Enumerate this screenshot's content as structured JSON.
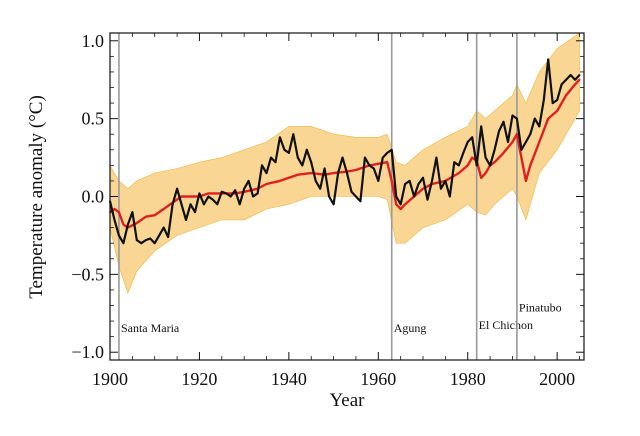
{
  "chart_data": {
    "type": "line",
    "xlabel": "Year",
    "ylabel": "Temperature anomaly (°C)",
    "xlim": [
      1900,
      2006
    ],
    "ylim": [
      -1.05,
      1.05
    ],
    "x_ticks": [
      {
        "value": 1900,
        "label": "1900"
      },
      {
        "value": 1920,
        "label": "1920"
      },
      {
        "value": 1940,
        "label": "1940"
      },
      {
        "value": 1960,
        "label": "1960"
      },
      {
        "value": 1980,
        "label": "1980"
      },
      {
        "value": 2000,
        "label": "2000"
      }
    ],
    "y_ticks": [
      {
        "value": 1.0,
        "label": "1.0"
      },
      {
        "value": 0.5,
        "label": "0.5"
      },
      {
        "value": 0.0,
        "label": "0.0"
      },
      {
        "value": -0.5,
        "label": "−0.5"
      },
      {
        "value": -1.0,
        "label": "−1.0"
      }
    ],
    "grid": false,
    "volcanic_eruptions": [
      {
        "name": "Santa Maria",
        "year": 1902,
        "label_y": -0.87
      },
      {
        "name": "Agung",
        "year": 1963,
        "label_y": -0.87
      },
      {
        "name": "El Chichon",
        "year": 1982,
        "label_y": -0.85
      },
      {
        "name": "Pinatubo",
        "year": 1991,
        "label_y": -0.74
      }
    ],
    "ensemble_band": {
      "color": "#f4b43c",
      "years": [
        1900,
        1902,
        1904,
        1906,
        1910,
        1915,
        1920,
        1925,
        1930,
        1935,
        1940,
        1945,
        1950,
        1955,
        1960,
        1962,
        1964,
        1966,
        1970,
        1975,
        1980,
        1982,
        1984,
        1986,
        1990,
        1991,
        1993,
        1996,
        2000,
        2005
      ],
      "lower": [
        -0.2,
        -0.45,
        -0.62,
        -0.48,
        -0.35,
        -0.25,
        -0.2,
        -0.15,
        -0.15,
        -0.08,
        -0.05,
        0.0,
        0.0,
        0.0,
        0.0,
        -0.02,
        -0.3,
        -0.3,
        -0.2,
        -0.15,
        -0.05,
        -0.1,
        -0.12,
        -0.05,
        0.05,
        0.0,
        -0.15,
        0.15,
        0.3,
        0.55
      ],
      "upper": [
        0.2,
        0.1,
        0.05,
        0.1,
        0.15,
        0.18,
        0.22,
        0.25,
        0.3,
        0.35,
        0.45,
        0.45,
        0.4,
        0.38,
        0.38,
        0.4,
        0.22,
        0.2,
        0.3,
        0.38,
        0.45,
        0.55,
        0.5,
        0.55,
        0.65,
        0.72,
        0.6,
        0.8,
        0.95,
        1.05
      ]
    },
    "series": [
      {
        "color": "#e02020",
        "x": [
          1900,
          1901,
          1902,
          1903,
          1904,
          1906,
          1908,
          1910,
          1912,
          1914,
          1916,
          1918,
          1920,
          1922,
          1925,
          1928,
          1930,
          1933,
          1935,
          1938,
          1940,
          1942,
          1945,
          1948,
          1950,
          1953,
          1955,
          1958,
          1960,
          1962,
          1963,
          1964,
          1965,
          1966,
          1968,
          1970,
          1972,
          1975,
          1978,
          1980,
          1981,
          1982,
          1983,
          1984,
          1985,
          1986,
          1988,
          1990,
          1991,
          1992,
          1993,
          1994,
          1996,
          1998,
          2000,
          2002,
          2004,
          2005
        ],
        "y": [
          -0.1,
          -0.08,
          -0.1,
          -0.18,
          -0.2,
          -0.17,
          -0.13,
          -0.12,
          -0.08,
          -0.04,
          0.0,
          0.0,
          0.0,
          0.02,
          0.02,
          0.02,
          0.03,
          0.05,
          0.08,
          0.1,
          0.12,
          0.14,
          0.15,
          0.14,
          0.15,
          0.16,
          0.17,
          0.2,
          0.21,
          0.22,
          0.1,
          -0.05,
          -0.08,
          -0.05,
          0.0,
          0.05,
          0.08,
          0.1,
          0.15,
          0.2,
          0.25,
          0.23,
          0.12,
          0.15,
          0.2,
          0.22,
          0.28,
          0.35,
          0.4,
          0.25,
          0.1,
          0.2,
          0.35,
          0.5,
          0.55,
          0.65,
          0.72,
          0.75
        ]
      },
      {
        "color": "#111111",
        "x": [
          1900,
          1901,
          1902,
          1903,
          1904,
          1905,
          1906,
          1907,
          1908,
          1909,
          1910,
          1911,
          1912,
          1913,
          1914,
          1915,
          1916,
          1917,
          1918,
          1919,
          1920,
          1921,
          1922,
          1923,
          1924,
          1925,
          1926,
          1927,
          1928,
          1929,
          1930,
          1931,
          1932,
          1933,
          1934,
          1935,
          1936,
          1937,
          1938,
          1939,
          1940,
          1941,
          1942,
          1943,
          1944,
          1945,
          1946,
          1947,
          1948,
          1949,
          1950,
          1951,
          1952,
          1953,
          1954,
          1955,
          1956,
          1957,
          1958,
          1959,
          1960,
          1961,
          1962,
          1963,
          1964,
          1965,
          1966,
          1967,
          1968,
          1969,
          1970,
          1971,
          1972,
          1973,
          1974,
          1975,
          1976,
          1977,
          1978,
          1979,
          1980,
          1981,
          1982,
          1983,
          1984,
          1985,
          1986,
          1987,
          1988,
          1989,
          1990,
          1991,
          1992,
          1993,
          1994,
          1995,
          1996,
          1997,
          1998,
          1999,
          2000,
          2001,
          2002,
          2003,
          2004,
          2005
        ],
        "y": [
          -0.03,
          -0.15,
          -0.25,
          -0.3,
          -0.18,
          -0.1,
          -0.28,
          -0.3,
          -0.28,
          -0.27,
          -0.3,
          -0.25,
          -0.2,
          -0.26,
          -0.05,
          0.05,
          -0.05,
          -0.15,
          -0.05,
          -0.1,
          0.02,
          -0.05,
          0.0,
          -0.02,
          -0.05,
          0.03,
          0.02,
          0.0,
          0.04,
          -0.05,
          0.05,
          0.1,
          0.0,
          0.02,
          0.2,
          0.15,
          0.25,
          0.22,
          0.38,
          0.3,
          0.28,
          0.4,
          0.25,
          0.2,
          0.3,
          0.22,
          0.1,
          0.05,
          0.18,
          0.0,
          -0.05,
          0.15,
          0.25,
          0.15,
          0.03,
          0.0,
          -0.03,
          0.25,
          0.2,
          0.18,
          0.1,
          0.25,
          0.28,
          0.3,
          0.0,
          -0.05,
          0.08,
          0.1,
          0.0,
          0.08,
          0.12,
          -0.02,
          0.1,
          0.25,
          0.05,
          0.1,
          0.0,
          0.22,
          0.2,
          0.28,
          0.35,
          0.38,
          0.2,
          0.45,
          0.25,
          0.2,
          0.3,
          0.42,
          0.48,
          0.35,
          0.52,
          0.5,
          0.3,
          0.35,
          0.4,
          0.5,
          0.45,
          0.62,
          0.88,
          0.6,
          0.62,
          0.72,
          0.75,
          0.78,
          0.75,
          0.78
        ]
      }
    ]
  }
}
